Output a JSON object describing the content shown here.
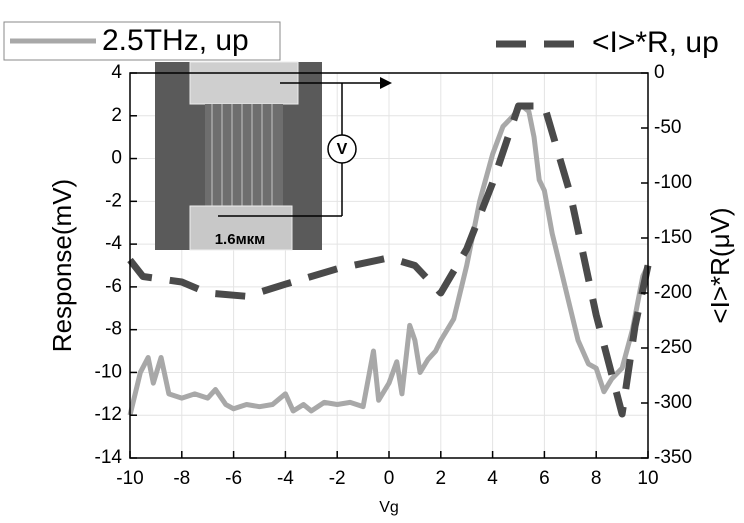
{
  "chart_data": {
    "type": "line",
    "x_label": "Vg",
    "y_label": "Response(mV)",
    "y2_label": "<I>*R(μV)",
    "annotations": [
      "1.6мкм",
      "V"
    ],
    "xlim": [
      -10,
      10
    ],
    "xticks": [
      -10,
      -8,
      -6,
      -4,
      -2,
      0,
      2,
      4,
      6,
      8,
      10
    ],
    "ylim": [
      -14,
      4
    ],
    "yticks": [
      -14,
      -12,
      -10,
      -8,
      -6,
      -4,
      -2,
      0,
      2,
      4
    ],
    "y2lim": [
      -350,
      0
    ],
    "y2ticks": [
      -350,
      -300,
      -250,
      -200,
      -150,
      -100,
      -50,
      0
    ],
    "grid": true,
    "series": [
      {
        "name": "2.5THz, up",
        "color": "#a8a8a8",
        "style": "solid",
        "axis": "y",
        "x": [
          -10,
          -9.6,
          -9.3,
          -9.1,
          -8.8,
          -8.5,
          -8,
          -7.5,
          -7,
          -6.7,
          -6.3,
          -6,
          -5.5,
          -5,
          -4.5,
          -4,
          -3.7,
          -3.3,
          -3,
          -2.5,
          -2,
          -1.5,
          -1,
          -0.6,
          -0.4,
          0,
          0.3,
          0.5,
          0.8,
          1,
          1.2,
          1.5,
          1.8,
          2,
          2.5,
          3,
          3.5,
          4,
          4.4,
          4.8,
          5.1,
          5.4,
          5.6,
          5.8,
          6,
          6.3,
          6.7,
          7,
          7.3,
          7.7,
          8,
          8.3,
          8.6,
          9,
          9.4,
          9.8,
          10
        ],
        "values": [
          -12,
          -10,
          -9.3,
          -10.5,
          -9.3,
          -11,
          -11.2,
          -11,
          -11.2,
          -10.8,
          -11.5,
          -11.7,
          -11.5,
          -11.6,
          -11.5,
          -11,
          -11.8,
          -11.5,
          -11.8,
          -11.4,
          -11.5,
          -11.4,
          -11.6,
          -9,
          -11.3,
          -10.5,
          -9.5,
          -11,
          -7.8,
          -8.5,
          -10,
          -9.4,
          -9,
          -8.5,
          -7.5,
          -5,
          -2,
          0.2,
          1.5,
          2,
          2.5,
          2.2,
          1,
          -1,
          -1.5,
          -3.5,
          -5.5,
          -7,
          -8.5,
          -9.6,
          -9.8,
          -10.9,
          -10.3,
          -9.8,
          -8,
          -5.5,
          -5
        ]
      },
      {
        "name": "<I>*R, up",
        "color": "#4a4a4a",
        "style": "dashed",
        "axis": "y2",
        "x": [
          -10,
          -9.5,
          -8,
          -7,
          -5.5,
          -4,
          -2,
          0,
          1,
          2,
          3,
          4,
          5,
          6,
          7,
          8,
          9,
          9.5,
          10
        ],
        "values": [
          -170,
          -185,
          -190,
          -200,
          -203,
          -192,
          -178,
          -168,
          -175,
          -200,
          -160,
          -100,
          -30,
          -30,
          -110,
          -220,
          -310,
          -230,
          -175
        ]
      }
    ]
  }
}
